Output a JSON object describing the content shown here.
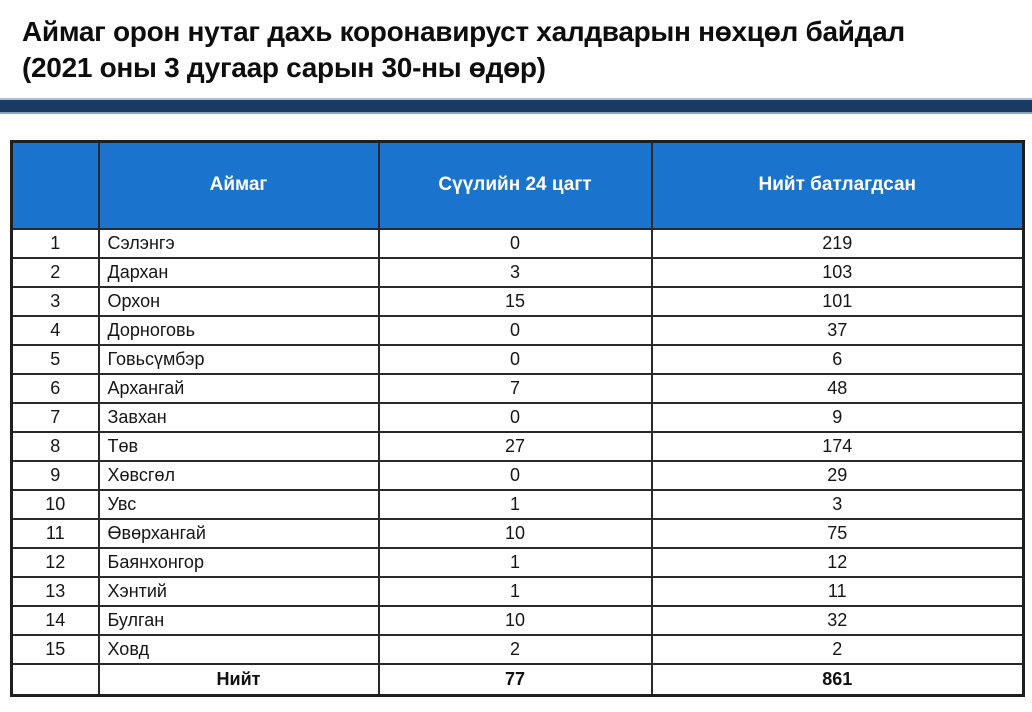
{
  "page": {
    "title_line1": "Аймаг орон нутаг дахь коронавируст халдварын нөхцөл байдал",
    "title_line2": "(2021 оны 3 дугаар сарын 30-ны өдөр)"
  },
  "colors": {
    "header_bg": "#1a74cd",
    "header_text": "#ffffff",
    "divider_bar": "#1b3a63",
    "table_border": "#2a2a2a",
    "body_text": "#161616"
  },
  "table": {
    "column_headers": [
      "",
      "Аймаг",
      "Сүүлийн 24 цагт",
      "Нийт батлагдсан"
    ],
    "rows": [
      {
        "no": "1",
        "aimag": "Сэлэнгэ",
        "last24": "0",
        "total": "219"
      },
      {
        "no": "2",
        "aimag": "Дархан",
        "last24": "3",
        "total": "103"
      },
      {
        "no": "3",
        "aimag": "Орхон",
        "last24": "15",
        "total": "101"
      },
      {
        "no": "4",
        "aimag": "Дорноговь",
        "last24": "0",
        "total": "37"
      },
      {
        "no": "5",
        "aimag": "Говьсүмбэр",
        "last24": "0",
        "total": "6"
      },
      {
        "no": "6",
        "aimag": "Архангай",
        "last24": "7",
        "total": "48"
      },
      {
        "no": "7",
        "aimag": "Завхан",
        "last24": "0",
        "total": "9"
      },
      {
        "no": "8",
        "aimag": "Төв",
        "last24": "27",
        "total": "174"
      },
      {
        "no": "9",
        "aimag": "Хөвсгөл",
        "last24": "0",
        "total": "29"
      },
      {
        "no": "10",
        "aimag": "Увс",
        "last24": "1",
        "total": "3"
      },
      {
        "no": "11",
        "aimag": "Өвөрхангай",
        "last24": "10",
        "total": "75"
      },
      {
        "no": "12",
        "aimag": "Баянхонгор",
        "last24": "1",
        "total": "12"
      },
      {
        "no": "13",
        "aimag": "Хэнтий",
        "last24": "1",
        "total": "11"
      },
      {
        "no": "14",
        "aimag": "Булган",
        "last24": "10",
        "total": "32"
      },
      {
        "no": "15",
        "aimag": "Ховд",
        "last24": "2",
        "total": "2"
      }
    ],
    "total_row": {
      "label": "Нийт",
      "last24": "77",
      "total": "861"
    }
  }
}
